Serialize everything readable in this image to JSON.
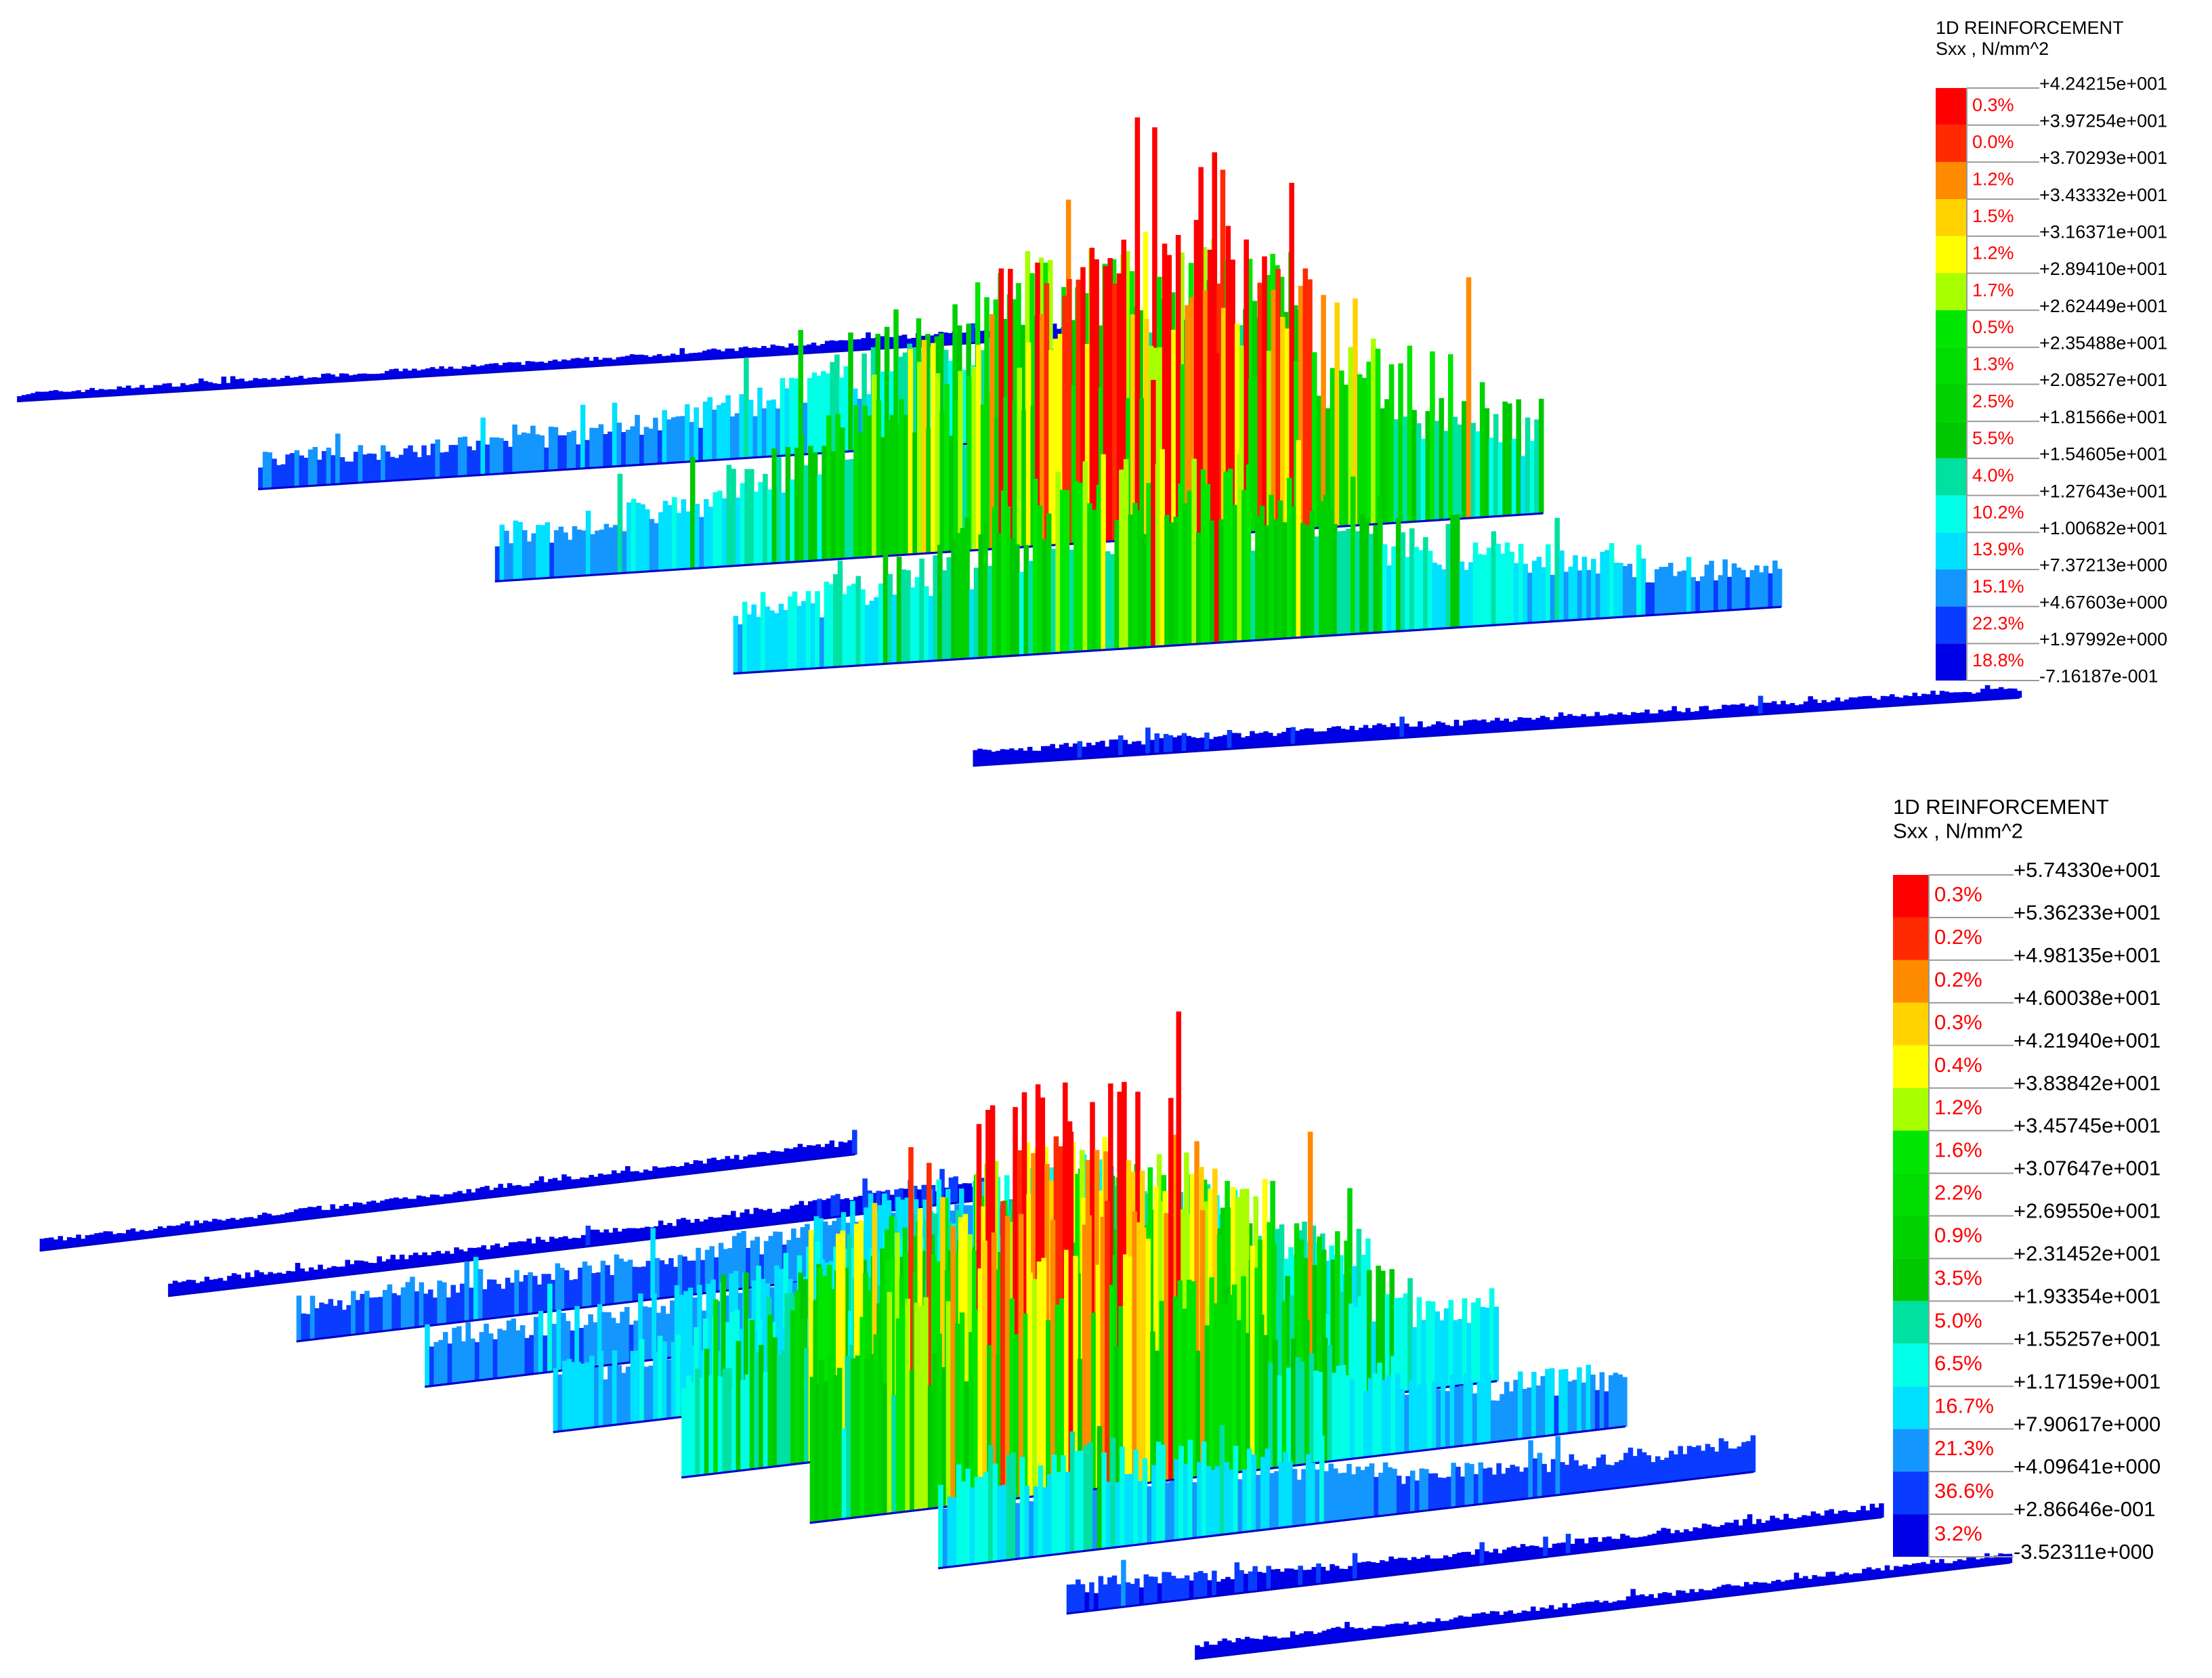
{
  "legends": [
    {
      "title": "1D REINFORCEMENT",
      "subtitle": "Sxx , N/mm^2",
      "levels": [
        "+4.24215e+001",
        "+3.97254e+001",
        "+3.70293e+001",
        "+3.43332e+001",
        "+3.16371e+001",
        "+2.89410e+001",
        "+2.62449e+001",
        "+2.35488e+001",
        "+2.08527e+001",
        "+1.81566e+001",
        "+1.54605e+001",
        "+1.27643e+001",
        "+1.00682e+001",
        "+7.37213e+000",
        "+4.67603e+000",
        "+1.97992e+000",
        "-7.16187e-001"
      ],
      "percents": [
        "0.3%",
        "0.0%",
        "1.2%",
        "1.5%",
        "1.2%",
        "1.7%",
        "0.5%",
        "1.3%",
        "2.5%",
        "5.5%",
        "4.0%",
        "10.2%",
        "13.9%",
        "15.1%",
        "22.3%",
        "18.8%"
      ],
      "colors": [
        "#ff0000",
        "#ff2a00",
        "#ff8c00",
        "#ffd200",
        "#ffff00",
        "#a8ff00",
        "#00e600",
        "#00dc00",
        "#00d200",
        "#00c800",
        "#00e0a0",
        "#00ffe6",
        "#00e0ff",
        "#1496ff",
        "#0a3cff",
        "#0000e6"
      ]
    },
    {
      "title": "1D REINFORCEMENT",
      "subtitle": "Sxx , N/mm^2",
      "levels": [
        "+5.74330e+001",
        "+5.36233e+001",
        "+4.98135e+001",
        "+4.60038e+001",
        "+4.21940e+001",
        "+3.83842e+001",
        "+3.45745e+001",
        "+3.07647e+001",
        "+2.69550e+001",
        "+2.31452e+001",
        "+1.93354e+001",
        "+1.55257e+001",
        "+1.17159e+001",
        "+7.90617e+000",
        "+4.09641e+000",
        "+2.86646e-001",
        "-3.52311e+000"
      ],
      "percents": [
        "0.3%",
        "0.2%",
        "0.2%",
        "0.3%",
        "0.4%",
        "1.2%",
        "1.6%",
        "2.2%",
        "0.9%",
        "3.5%",
        "5.0%",
        "6.5%",
        "16.7%",
        "21.3%",
        "36.6%",
        "3.2%"
      ],
      "colors": [
        "#ff0000",
        "#ff2a00",
        "#ff8c00",
        "#ffd200",
        "#ffff00",
        "#a8ff00",
        "#00e600",
        "#00dc00",
        "#00d200",
        "#00c800",
        "#00e0a0",
        "#00ffe6",
        "#00e0ff",
        "#1496ff",
        "#0a3cff",
        "#0000e6"
      ]
    }
  ]
}
